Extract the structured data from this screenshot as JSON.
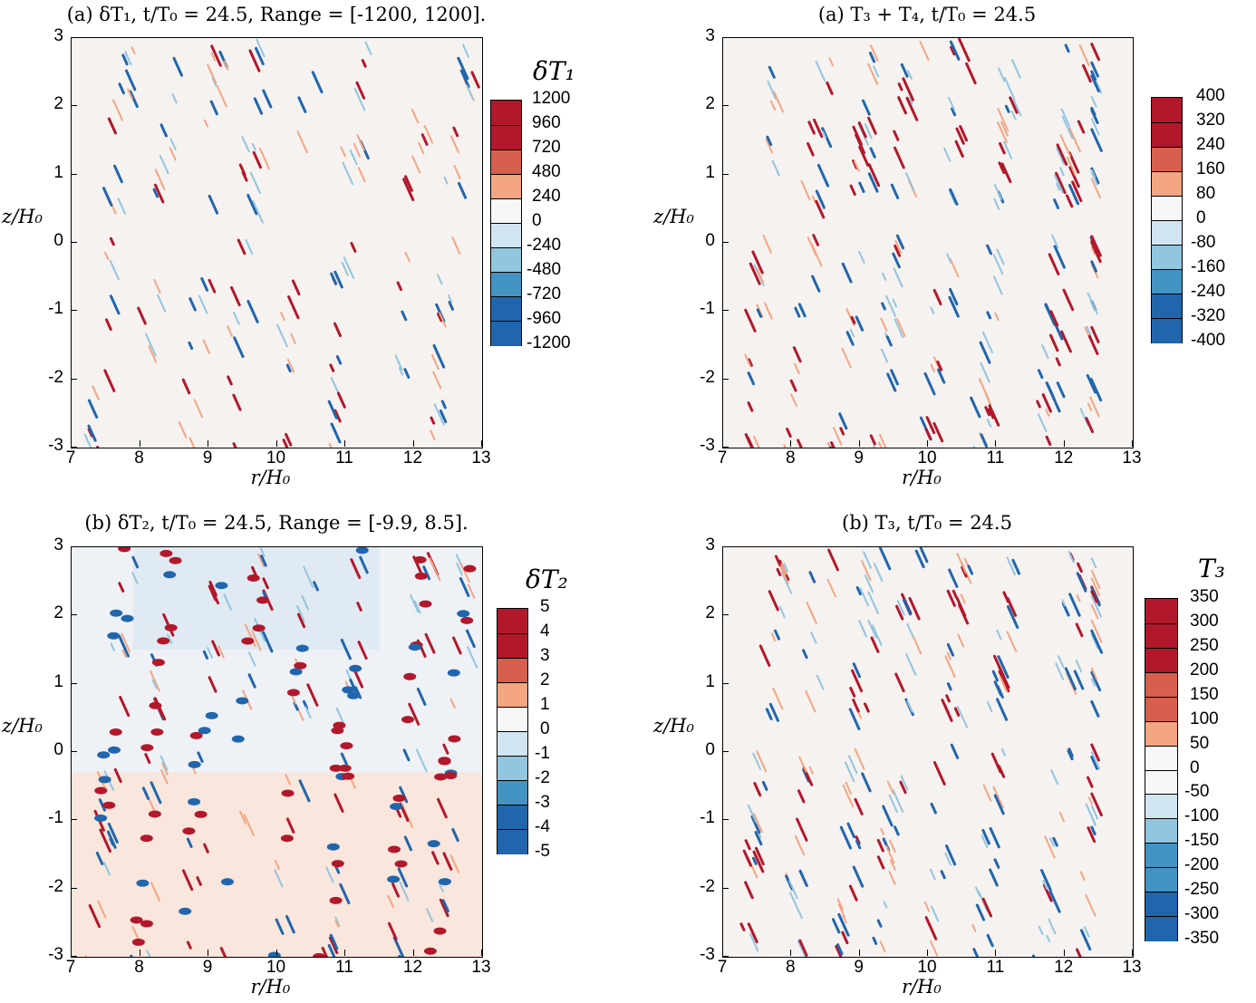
{
  "chart_data": [
    {
      "type": "heatmap",
      "title": "(a) δT₁, t/T₀ = 24.5, Range = [-1200, 1200].",
      "xlabel": "r/H₀",
      "ylabel": "z/H₀",
      "xlim": [
        7,
        13
      ],
      "ylim": [
        -3,
        3
      ],
      "xticks": [
        "7",
        "8",
        "9",
        "10",
        "11",
        "12",
        "13"
      ],
      "yticks": [
        "3",
        "2",
        "1",
        "0",
        "-1",
        "-2",
        "-3"
      ],
      "colorbar_title": "δT₁",
      "colorbar_labels": [
        "1200",
        "960",
        "720",
        "480",
        "240",
        "0",
        "-240",
        "-480",
        "-720",
        "-960",
        "-1200"
      ],
      "colormap": "diverging blue-white-red"
    },
    {
      "type": "heatmap",
      "title": "(a) T₃ + T₄,  t/T₀ = 24.5",
      "xlabel": "r/H₀",
      "ylabel": "z/H₀",
      "xlim": [
        7,
        13
      ],
      "ylim": [
        -3,
        3
      ],
      "xticks": [
        "7",
        "8",
        "9",
        "10",
        "11",
        "12",
        "13"
      ],
      "yticks": [
        "3",
        "2",
        "1",
        "0",
        "-1",
        "-2",
        "-3"
      ],
      "colorbar_title": "",
      "colorbar_labels": [
        "400",
        "320",
        "240",
        "160",
        "80",
        "0",
        "-80",
        "-160",
        "-240",
        "-320",
        "-400"
      ],
      "colormap": "diverging blue-white-red"
    },
    {
      "type": "heatmap",
      "title": "(b) δT₂, t/T₀ = 24.5, Range = [-9.9, 8.5].",
      "xlabel": "r/H₀",
      "ylabel": "z/H₀",
      "xlim": [
        7,
        13
      ],
      "ylim": [
        -3,
        3
      ],
      "xticks": [
        "7",
        "8",
        "9",
        "10",
        "11",
        "12",
        "13"
      ],
      "yticks": [
        "3",
        "2",
        "1",
        "0",
        "-1",
        "-2",
        "-3"
      ],
      "colorbar_title": "δT₂",
      "colorbar_labels": [
        "5",
        "4",
        "3",
        "2",
        "1",
        "0",
        "-1",
        "-2",
        "-3",
        "-4",
        "-5"
      ],
      "colormap": "diverging blue-white-red"
    },
    {
      "type": "heatmap",
      "title": "(b) T₃,  t/T₀ = 24.5",
      "xlabel": "r/H₀",
      "ylabel": "z/H₀",
      "xlim": [
        7,
        13
      ],
      "ylim": [
        -3,
        3
      ],
      "xticks": [
        "7",
        "8",
        "9",
        "10",
        "11",
        "12",
        "13"
      ],
      "yticks": [
        "3",
        "2",
        "1",
        "0",
        "-1",
        "-2",
        "-3"
      ],
      "colorbar_title": "T₃",
      "colorbar_labels": [
        "350",
        "300",
        "250",
        "200",
        "150",
        "100",
        "50",
        "0",
        "-50",
        "-100",
        "-150",
        "-200",
        "-250",
        "-300",
        "-350"
      ],
      "colormap": "diverging blue-white-red"
    }
  ],
  "colors": {
    "red_dark": "#b2182b",
    "red_mid": "#d6604d",
    "red_light": "#f4a582",
    "red_pale": "#fddbc7",
    "white": "#f7f7f7",
    "blue_pale": "#d1e5f0",
    "blue_light": "#92c5de",
    "blue_mid": "#4393c3",
    "blue_dark": "#2166ac"
  }
}
